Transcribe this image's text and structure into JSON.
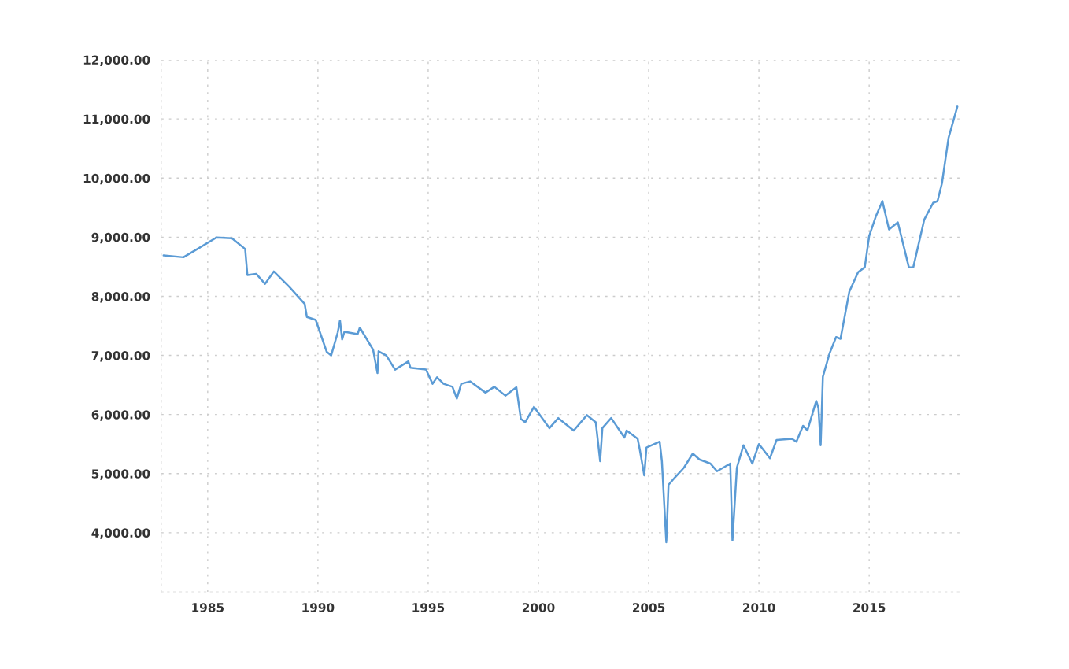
{
  "chart_data": {
    "type": "line",
    "x": [
      1983.0,
      1983.9,
      1984.8,
      1985.4,
      1986.1,
      1986.7,
      1986.8,
      1987.2,
      1987.6,
      1988.0,
      1988.7,
      1989.4,
      1989.5,
      1989.9,
      1990.4,
      1990.6,
      1990.9,
      1991.0,
      1991.1,
      1991.2,
      1991.8,
      1991.9,
      1992.5,
      1992.7,
      1992.75,
      1993.1,
      1993.5,
      1993.8,
      1994.1,
      1994.2,
      1994.9,
      1995.2,
      1995.4,
      1995.7,
      1996.1,
      1996.3,
      1996.5,
      1996.9,
      1997.6,
      1998.0,
      1998.5,
      1999.0,
      1999.2,
      1999.4,
      1999.8,
      2000.5,
      2000.9,
      2001.6,
      2002.2,
      2002.6,
      2002.8,
      2002.9,
      2003.3,
      2003.9,
      2004.0,
      2004.5,
      2004.6,
      2004.8,
      2004.9,
      2005.5,
      2005.6,
      2005.8,
      2005.9,
      2006.2,
      2006.6,
      2007.0,
      2007.3,
      2007.8,
      2008.1,
      2008.7,
      2008.8,
      2009.0,
      2009.3,
      2009.7,
      2010.0,
      2010.5,
      2010.8,
      2011.5,
      2011.7,
      2012.0,
      2012.2,
      2012.6,
      2012.7,
      2012.8,
      2012.9,
      2013.2,
      2013.5,
      2013.7,
      2014.1,
      2014.5,
      2014.8,
      2015.0,
      2015.3,
      2015.6,
      2015.9,
      2016.3,
      2016.8,
      2017.0,
      2017.5,
      2017.9,
      2018.1,
      2018.3,
      2018.6,
      2019.0
    ],
    "series": [
      {
        "color": "#5b9bd5",
        "values": [
          8690,
          8660,
          8860,
          8995,
          8980,
          8800,
          8360,
          8380,
          8210,
          8420,
          8160,
          7870,
          7650,
          7600,
          7060,
          7000,
          7390,
          7590,
          7270,
          7400,
          7360,
          7470,
          7100,
          6700,
          7070,
          7000,
          6760,
          6830,
          6900,
          6790,
          6760,
          6520,
          6630,
          6520,
          6470,
          6270,
          6520,
          6560,
          6370,
          6470,
          6320,
          6460,
          5930,
          5870,
          6130,
          5770,
          5940,
          5730,
          5990,
          5870,
          5210,
          5770,
          5940,
          5610,
          5730,
          5590,
          5400,
          4970,
          5440,
          5540,
          5210,
          3840,
          4810,
          4940,
          5100,
          5340,
          5240,
          5170,
          5040,
          5170,
          3870,
          5100,
          5480,
          5170,
          5500,
          5260,
          5570,
          5590,
          5540,
          5810,
          5730,
          6230,
          6110,
          5480,
          6640,
          7030,
          7310,
          7280,
          8080,
          8410,
          8490,
          9020,
          9350,
          9610,
          9130,
          9250,
          8490,
          8490,
          9300,
          9580,
          9610,
          9910,
          10680,
          11210
        ]
      }
    ],
    "xlim": [
      1982.9,
      2019.1
    ],
    "xticks": [
      1985,
      1990,
      1995,
      2000,
      2005,
      2010,
      2015
    ],
    "ylim": [
      3000,
      12000
    ],
    "yticks": [
      {
        "value": 4000,
        "label": "4,000.00"
      },
      {
        "value": 5000,
        "label": "5,000.00"
      },
      {
        "value": 6000,
        "label": "6,000.00"
      },
      {
        "value": 7000,
        "label": "7,000.00"
      },
      {
        "value": 8000,
        "label": "8,000.00"
      },
      {
        "value": 9000,
        "label": "9,000.00"
      },
      {
        "value": 10000,
        "label": "10,000.00"
      },
      {
        "value": 11000,
        "label": "11,000.00"
      },
      {
        "value": 12000,
        "label": "12,000.00"
      }
    ],
    "grid": true,
    "line_style": "solid",
    "marker": "none"
  }
}
